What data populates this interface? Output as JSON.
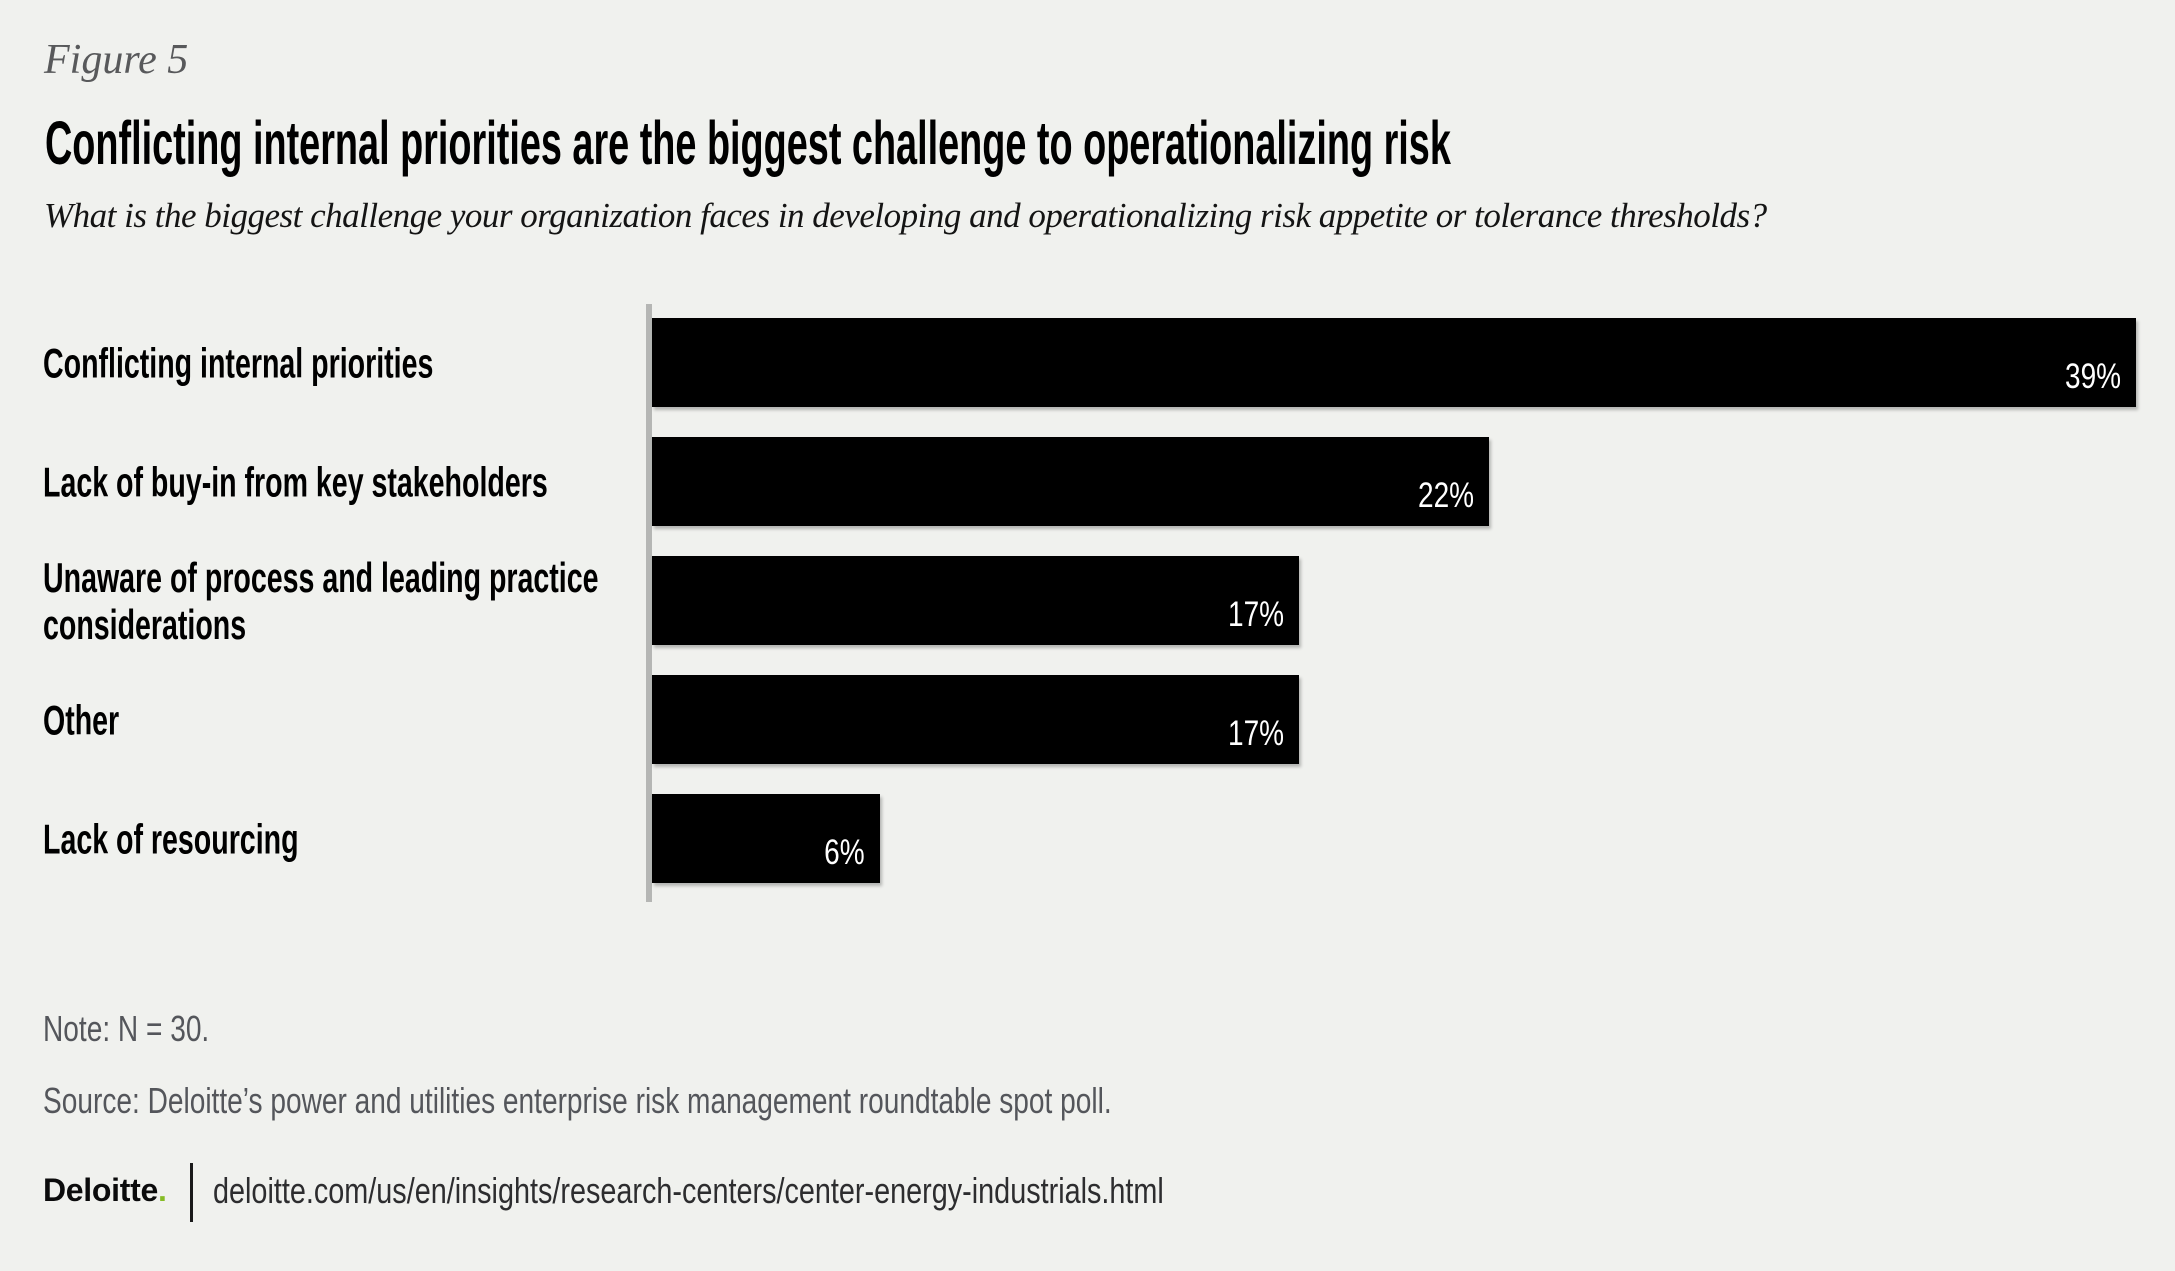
{
  "figure_label": "Figure 5",
  "title": "Conflicting internal priorities are the biggest challenge to operationalizing risk",
  "subtitle": "What is the biggest challenge your organization faces in developing and operationalizing risk appetite or tolerance thresholds?",
  "chart_data": {
    "type": "bar",
    "orientation": "horizontal",
    "categories": [
      "Conflicting internal priorities",
      "Lack of buy-in from key stakeholders",
      "Unaware of process and leading practice considerations",
      "Other",
      "Lack of resourcing"
    ],
    "values": [
      39,
      22,
      17,
      17,
      6
    ],
    "value_labels": [
      "39%",
      "22%",
      "17%",
      "17%",
      "6%"
    ],
    "xlim": [
      0,
      39.5
    ],
    "grid": false,
    "legend": "none",
    "bar_color": "#000000",
    "value_label_color": "#ffffff",
    "axis_line_color": "#b5b6b4"
  },
  "note": "Note: N = 30.",
  "source": "Source: Deloitte’s power and utilities enterprise risk management roundtable spot poll.",
  "footer": {
    "logo_text": "Deloitte",
    "logo_dot": ".",
    "logo_dot_color": "#86bc25",
    "url": "deloitte.com/us/en/insights/research-centers/center-energy-industrials.html"
  },
  "colors": {
    "background": "#f0f1ee",
    "muted_text": "#54565b",
    "title_text": "#000000"
  }
}
